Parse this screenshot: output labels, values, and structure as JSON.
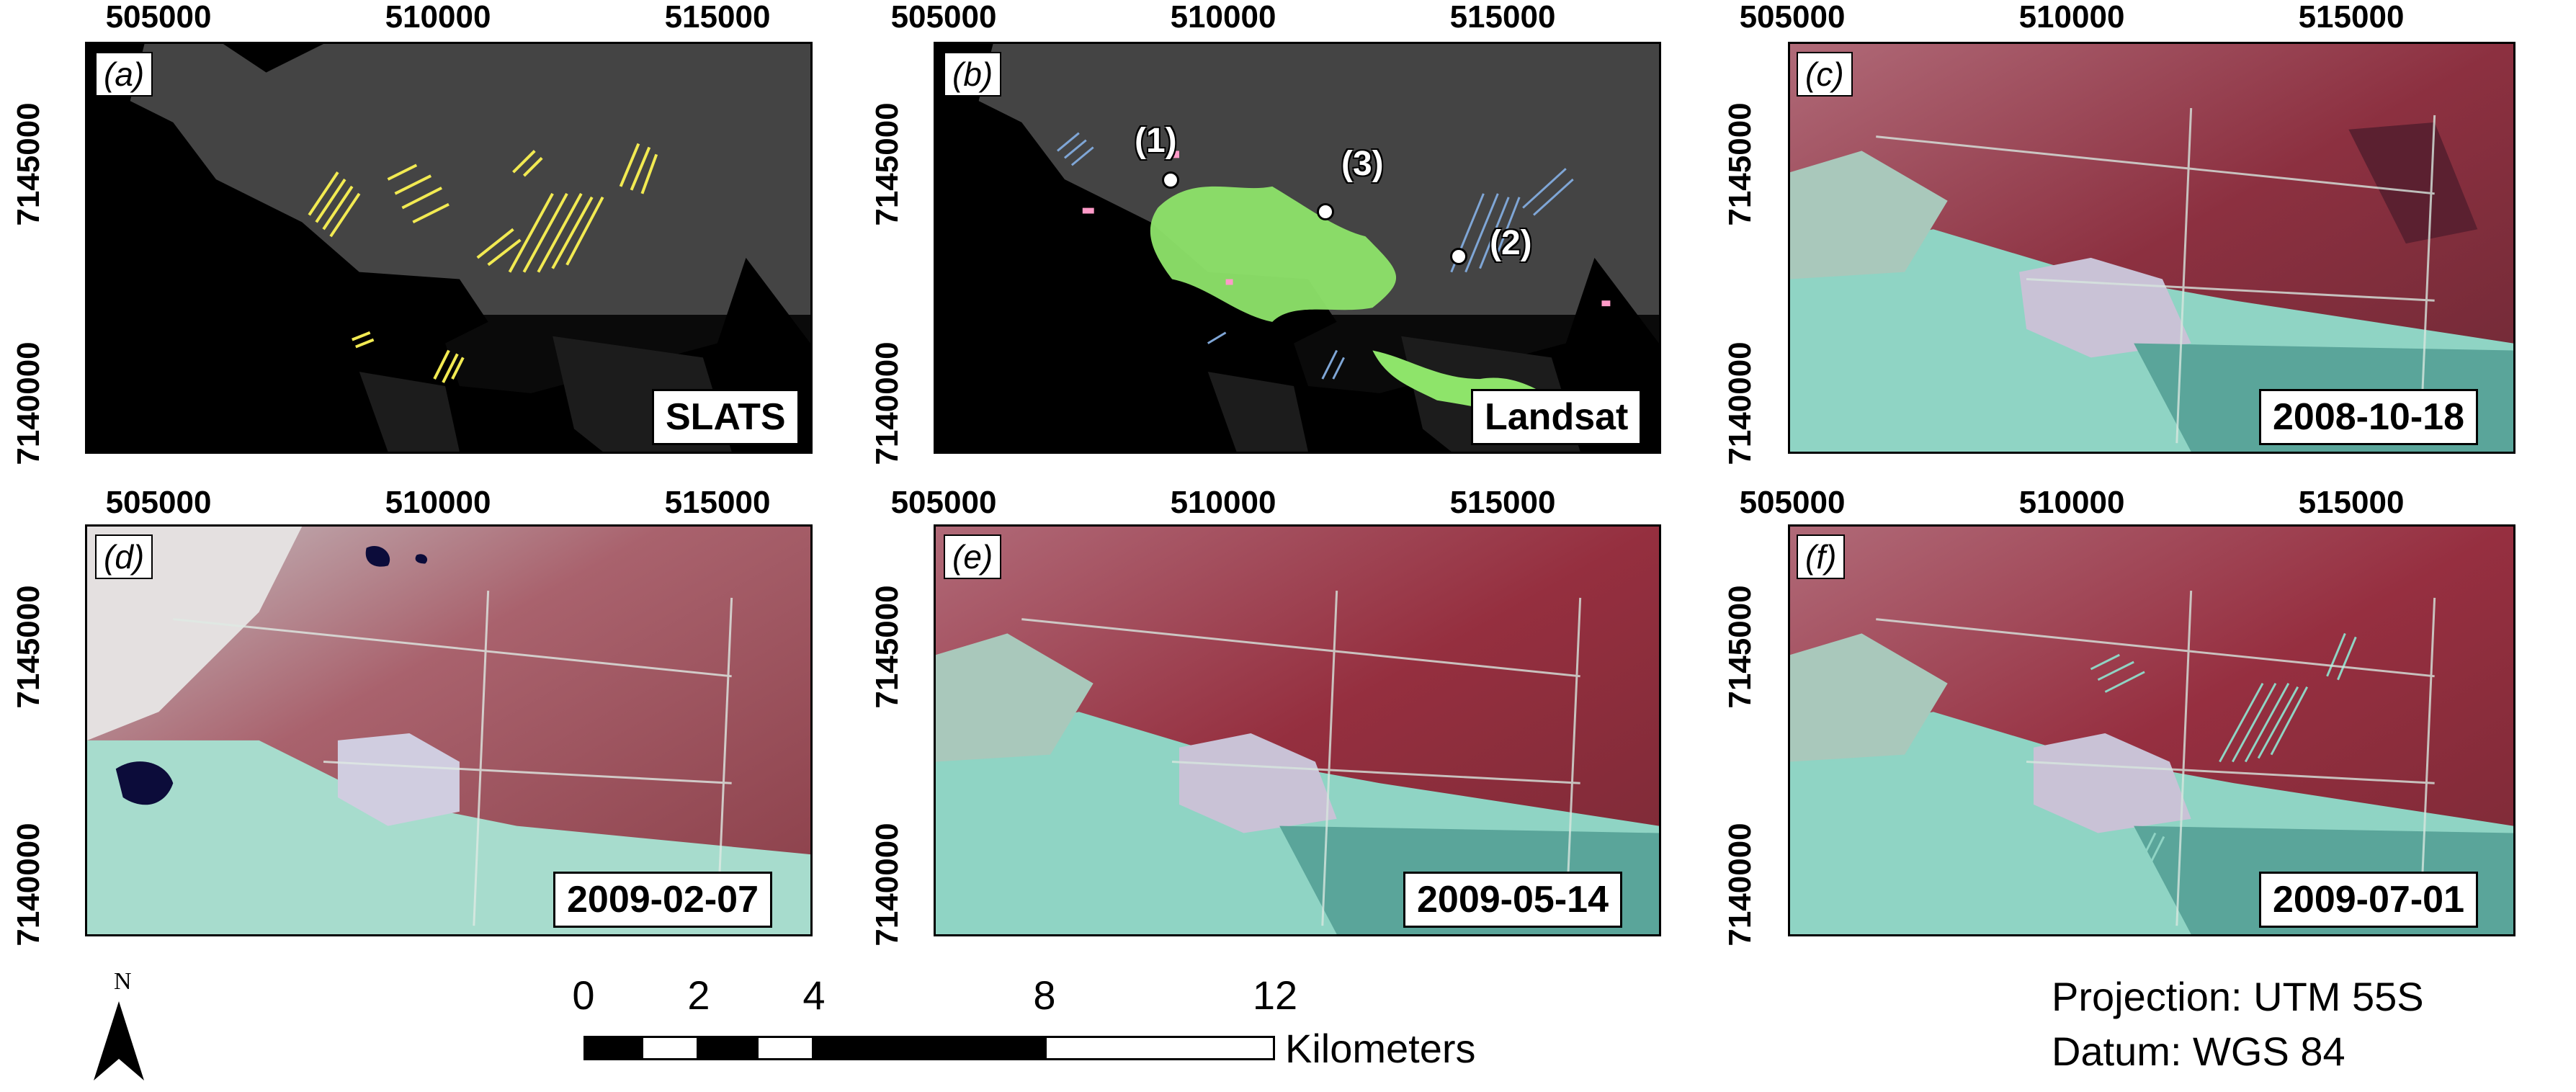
{
  "colors": {
    "classification_background": "#444444",
    "no_data": "#000000",
    "slats_clearing": "#f2ea52",
    "landsat_green": "#8ee46a",
    "landsat_blue": "#7fa6d6",
    "landsat_pink": "#ff9ac8",
    "false_color_red": "#9a2f3b",
    "false_color_cyan": "#7fd0c0"
  },
  "axes": {
    "x_ticks": [
      "505000",
      "510000",
      "515000"
    ],
    "y_ticks": [
      "7145000",
      "7140000"
    ]
  },
  "panels": [
    {
      "label": "(a)",
      "tag": "SLATS",
      "kind": "slats"
    },
    {
      "label": "(b)",
      "tag": "Landsat",
      "kind": "landsat",
      "sites": [
        "(1)",
        "(3)",
        "(2)"
      ]
    },
    {
      "label": "(c)",
      "tag": "2008-10-18",
      "kind": "image"
    },
    {
      "label": "(d)",
      "tag": "2009-02-07",
      "kind": "image"
    },
    {
      "label": "(e)",
      "tag": "2009-05-14",
      "kind": "image"
    },
    {
      "label": "(f)",
      "tag": "2009-07-01",
      "kind": "image"
    }
  ],
  "north_arrow": {
    "letter": "N",
    "icon": "north-arrow-icon"
  },
  "scale_bar": {
    "labels": [
      "0",
      "2",
      "4",
      "8",
      "12"
    ],
    "unit": "Kilometers"
  },
  "footer": {
    "projection": "Projection: UTM 55S",
    "datum": "Datum: WGS 84"
  }
}
